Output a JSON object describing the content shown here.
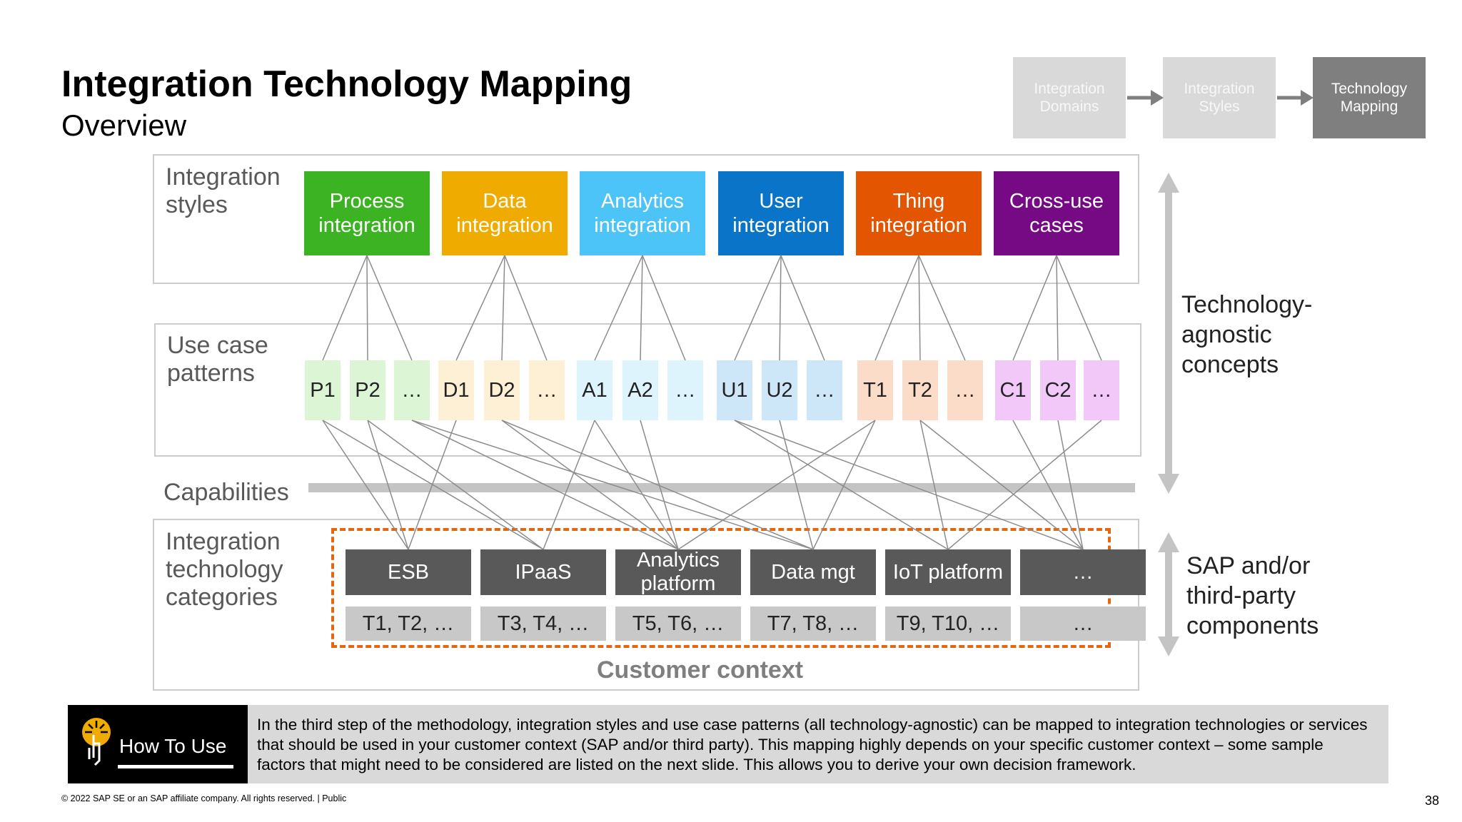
{
  "title": "Integration Technology Mapping",
  "subtitle": "Overview",
  "steps": [
    {
      "label": "Integration\nDomains",
      "state": "inactive"
    },
    {
      "label": "Integration\nStyles",
      "state": "inactive"
    },
    {
      "label": "Technology\nMapping",
      "state": "active"
    }
  ],
  "labels": {
    "integration_styles": "Integration\nstyles",
    "use_case_patterns": "Use case\npatterns",
    "capabilities": "Capabilities",
    "integration_technology_categories": "Integration\ntechnology\ncategories",
    "customer_context": "Customer context",
    "technology_agnostic": "Technology-\nagnostic\nconcepts",
    "sap_components": "SAP and/or\nthird-party\ncomponents"
  },
  "styles": [
    {
      "label": "Process\nintegration",
      "color": "#3cb323"
    },
    {
      "label": "Data\nintegration",
      "color": "#f0ab00"
    },
    {
      "label": "Analytics\nintegration",
      "color": "#4cc4f7"
    },
    {
      "label": "User\nintegration",
      "color": "#0a74c9"
    },
    {
      "label": "Thing\nintegration",
      "color": "#e35500"
    },
    {
      "label": "Cross-use\ncases",
      "color": "#760a85"
    }
  ],
  "patterns": [
    {
      "label": "P1",
      "color": "#dcf5d5"
    },
    {
      "label": "P2",
      "color": "#dcf5d5"
    },
    {
      "label": "…",
      "color": "#dcf5d5"
    },
    {
      "label": "D1",
      "color": "#fdf0d5"
    },
    {
      "label": "D2",
      "color": "#fdf0d5"
    },
    {
      "label": "…",
      "color": "#fdf0d5"
    },
    {
      "label": "A1",
      "color": "#def4fd"
    },
    {
      "label": "A2",
      "color": "#def4fd"
    },
    {
      "label": "…",
      "color": "#def4fd"
    },
    {
      "label": "U1",
      "color": "#cde6f8"
    },
    {
      "label": "U2",
      "color": "#cde6f8"
    },
    {
      "label": "…",
      "color": "#cde6f8"
    },
    {
      "label": "T1",
      "color": "#fbdcc8"
    },
    {
      "label": "T2",
      "color": "#fbdcc8"
    },
    {
      "label": "…",
      "color": "#fbdcc8"
    },
    {
      "label": "C1",
      "color": "#f1c8f8"
    },
    {
      "label": "C2",
      "color": "#f1c8f8"
    },
    {
      "label": "…",
      "color": "#f1c8f8"
    }
  ],
  "categories": [
    {
      "label": "ESB",
      "tech": "T1, T2, …"
    },
    {
      "label": "IPaaS",
      "tech": "T3, T4, …"
    },
    {
      "label": "Analytics\nplatform",
      "tech": "T5, T6, …"
    },
    {
      "label": "Data mgt",
      "tech": "T7, T8, …"
    },
    {
      "label": "IoT platform",
      "tech": "T9, T10, …"
    },
    {
      "label": "…",
      "tech": "…"
    }
  ],
  "how_to_use": {
    "label": "How To Use",
    "text": "In the third step of the methodology, integration styles and use case patterns (all technology-agnostic) can be mapped to integration technologies or services that should be used in your customer context (SAP and/or third party). This mapping highly depends on your specific customer context – some sample factors that might need to be considered are listed on the next slide. This allows you to derive your own decision framework."
  },
  "footer": "© 2022 SAP SE or an SAP affiliate company. All rights reserved. | Public",
  "page_number": "38",
  "colors": {
    "accent_dashed": "#e2670f",
    "step_active": "#7f7f7f",
    "step_inactive": "#d9d9d9",
    "category_box": "#595959",
    "tech_box": "#c8c8c8"
  },
  "icons": {
    "how_to_use": "touch-hand-icon"
  }
}
